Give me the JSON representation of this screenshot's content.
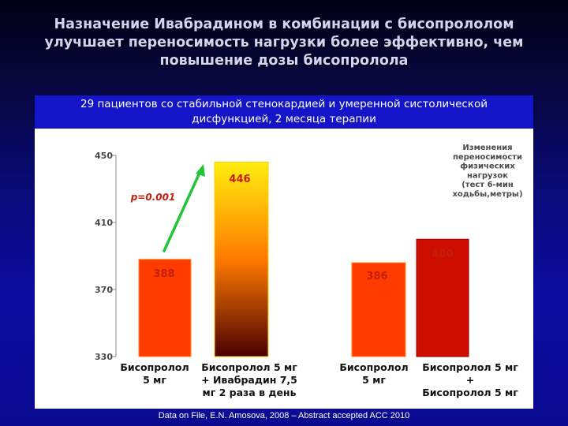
{
  "title": "Назначение Ивабрадином в комбинации с бисопрололом\nулучшает переносимость нагрузки более эффективно, чем\nповышение дозы бисопролола",
  "subtitle": "29 пациентов со стабильной стенокардией и умеренной систолической\nдисфункцией, 2 месяца терапии",
  "footer": "Data on File, E.N. Amosova, 2008 – Abstract accepted ACC 2010",
  "chart_data": {
    "type": "bar",
    "categories": [
      "Бисопролол\n5 мг",
      "Бисопролол 5 мг\n+ Ивабрадин 7,5\nмг 2 раза в день",
      "Бисопролол\n5 мг",
      "Бисопролол 5 мг\n+\nБисопролол 5 мг"
    ],
    "values": [
      388,
      446,
      386,
      400
    ],
    "data_labels": [
      "388",
      "446",
      "386",
      "400"
    ],
    "ylim": [
      330,
      450
    ],
    "yticks": [
      330,
      370,
      410,
      450
    ],
    "ylabel": "Изменения\nпереносимости\nфизических\nнагрузок\n(тест 6-мин\nходьбы,метры)",
    "annotation": "p=0.001",
    "grid": false,
    "colors": {
      "bar_plain": "#ff3b00",
      "bar_gradient_top": "#ffee10",
      "bar_gradient_mid": "#ff7a00",
      "bar_gradient_bottom": "#4a0000",
      "bar_dark": "#cc0d00",
      "arrow": "#22c43a",
      "label_text": "#c41e0c",
      "axis_text": "#4a4a4a",
      "panel": "#ffffff"
    }
  }
}
